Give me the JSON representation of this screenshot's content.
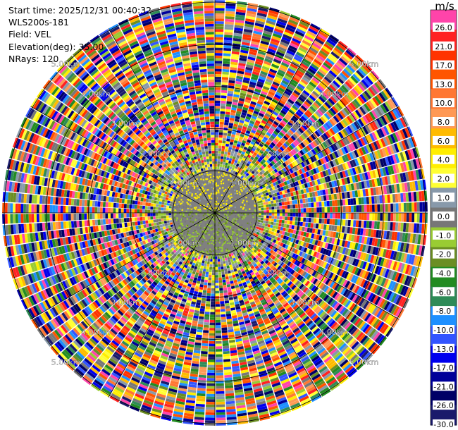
{
  "header": {
    "start_time": "Start time: 2025/12/31 00:40:32",
    "instrument": "WLS200s-181",
    "field": "Field: VEL",
    "elevation": "Elevation(deg): 35.00",
    "nrays": "NRays: 120"
  },
  "chart_data": {
    "type": "heatmap",
    "projection": "polar-ppi",
    "field": "VEL",
    "n_rays": 120,
    "elevation_deg": 35.0,
    "range_rings_km": [
      1,
      2,
      3,
      4,
      5
    ],
    "range_ring_labels": [
      "1.00km",
      "2.00km",
      "3.00km",
      "4.00km",
      "5.00km"
    ],
    "colorbar": {
      "unit": "m/s",
      "tick_labels": [
        "26.0",
        "21.0",
        "17.0",
        "13.0",
        "10.0",
        "8.0",
        "6.0",
        "4.0",
        "2.0",
        "1.0",
        "0.0",
        "-1.0",
        "-2.0",
        "-4.0",
        "-6.0",
        "-8.0",
        "-10.0",
        "-13.0",
        "-17.0",
        "-21.0",
        "-26.0",
        "-30.0"
      ],
      "colors": [
        "#ff44aa",
        "#ff2222",
        "#ff3300",
        "#ff5500",
        "#ff7733",
        "#ff9955",
        "#ffbb00",
        "#ffee00",
        "#ffff33",
        "#8899aa",
        "#777777",
        "#99cc33",
        "#6b8e23",
        "#228b22",
        "#2e8b57",
        "#1e90ff",
        "#3355ff",
        "#0000ee",
        "#000099",
        "#000066",
        "#1a1a6b"
      ]
    }
  }
}
